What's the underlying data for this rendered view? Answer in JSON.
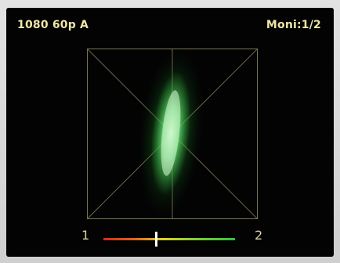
{
  "header": {
    "format": "1080 60p A",
    "monitor": "Moni:1/2"
  },
  "phase_meter": {
    "left_label": "1",
    "right_label": "2",
    "needle_position": 0.4
  },
  "colors": {
    "background": "#030303",
    "text": "#efe6a8",
    "scope_lines": "#8a8560",
    "trace": "#39d24a"
  }
}
